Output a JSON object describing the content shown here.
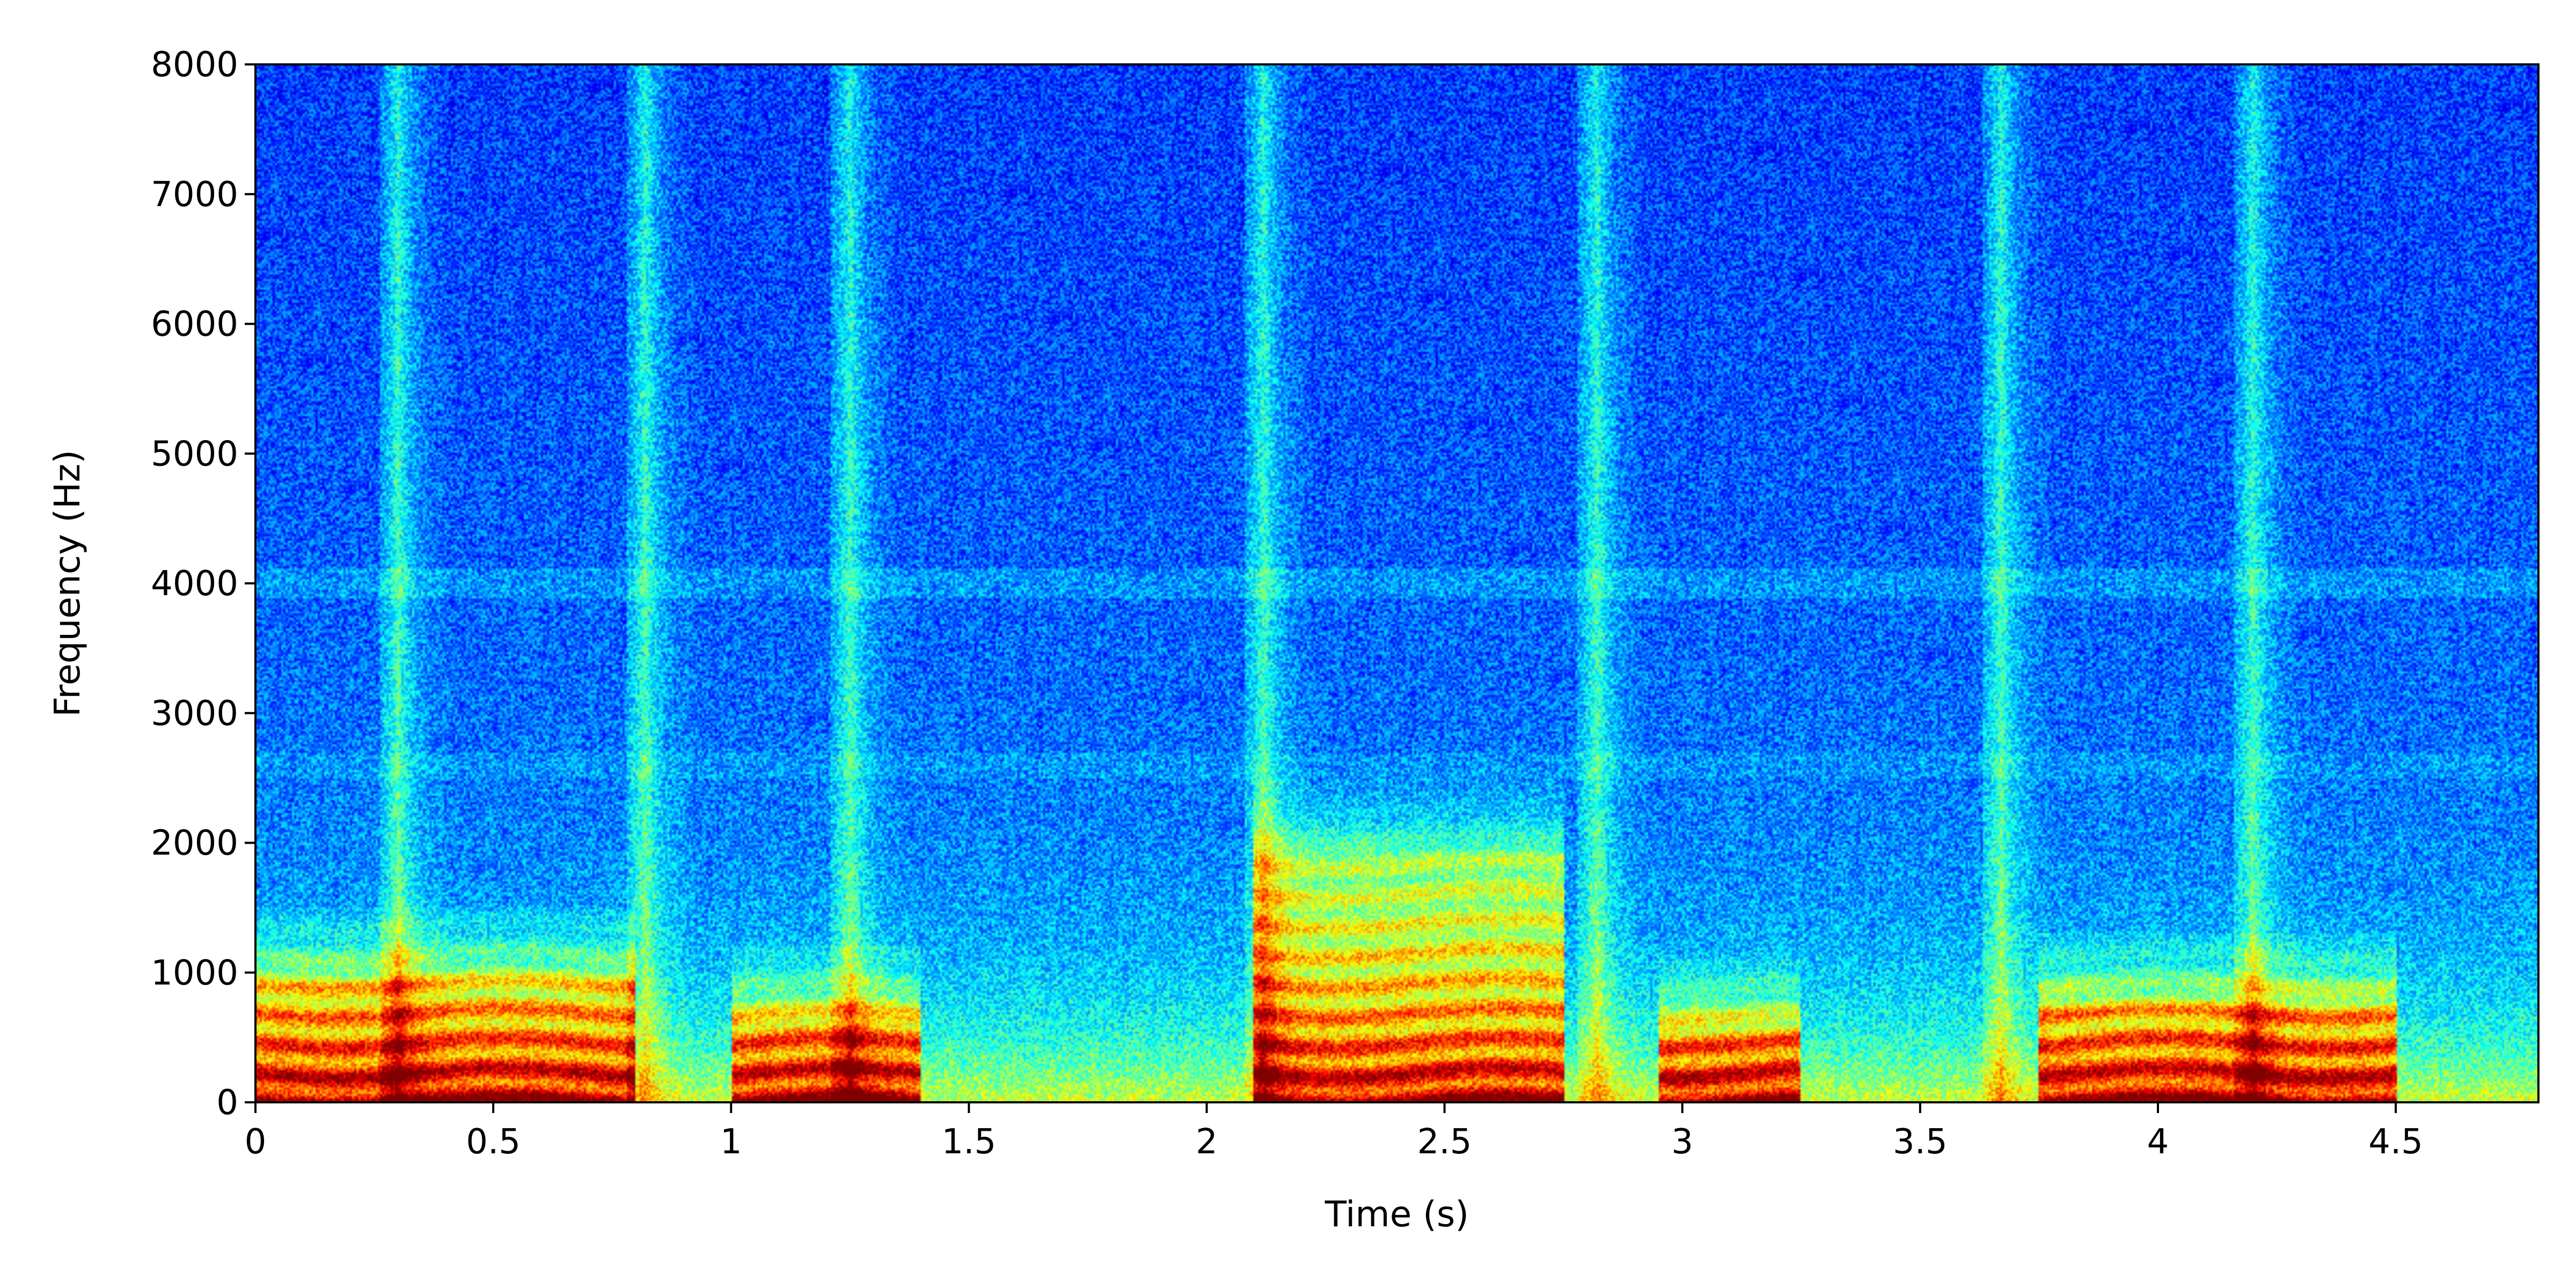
{
  "chart_data": {
    "type": "heatmap",
    "subtype": "spectrogram",
    "title": "",
    "xlabel": "Time (s)",
    "ylabel": "Frequency (Hz)",
    "xlim": [
      0,
      4.8
    ],
    "ylim": [
      0,
      8000
    ],
    "x_ticks": [
      0,
      0.5,
      1,
      1.5,
      2,
      2.5,
      3,
      3.5,
      4,
      4.5
    ],
    "x_tick_labels": [
      "0",
      "0.5",
      "1",
      "1.5",
      "2",
      "2.5",
      "3",
      "3.5",
      "4",
      "4.5"
    ],
    "y_ticks": [
      0,
      1000,
      2000,
      3000,
      4000,
      5000,
      6000,
      7000,
      8000
    ],
    "y_tick_labels": [
      "0",
      "1000",
      "2000",
      "3000",
      "4000",
      "5000",
      "6000",
      "7000",
      "8000"
    ],
    "colormap": "jet",
    "grid": false,
    "legend": "none",
    "broadband_onsets_s": [
      0.28,
      0.8,
      1.23,
      2.1,
      2.8,
      3.65,
      4.18
    ],
    "high_energy_regions": [
      {
        "t_start": 0.0,
        "t_end": 0.8,
        "f_low": 0,
        "f_high": 900
      },
      {
        "t_start": 1.0,
        "t_end": 1.4,
        "f_low": 0,
        "f_high": 600
      },
      {
        "t_start": 2.1,
        "t_end": 2.75,
        "f_low": 0,
        "f_high": 1900
      },
      {
        "t_start": 2.95,
        "t_end": 3.25,
        "f_low": 0,
        "f_high": 500
      },
      {
        "t_start": 3.75,
        "t_end": 4.5,
        "f_low": 0,
        "f_high": 700
      }
    ]
  }
}
